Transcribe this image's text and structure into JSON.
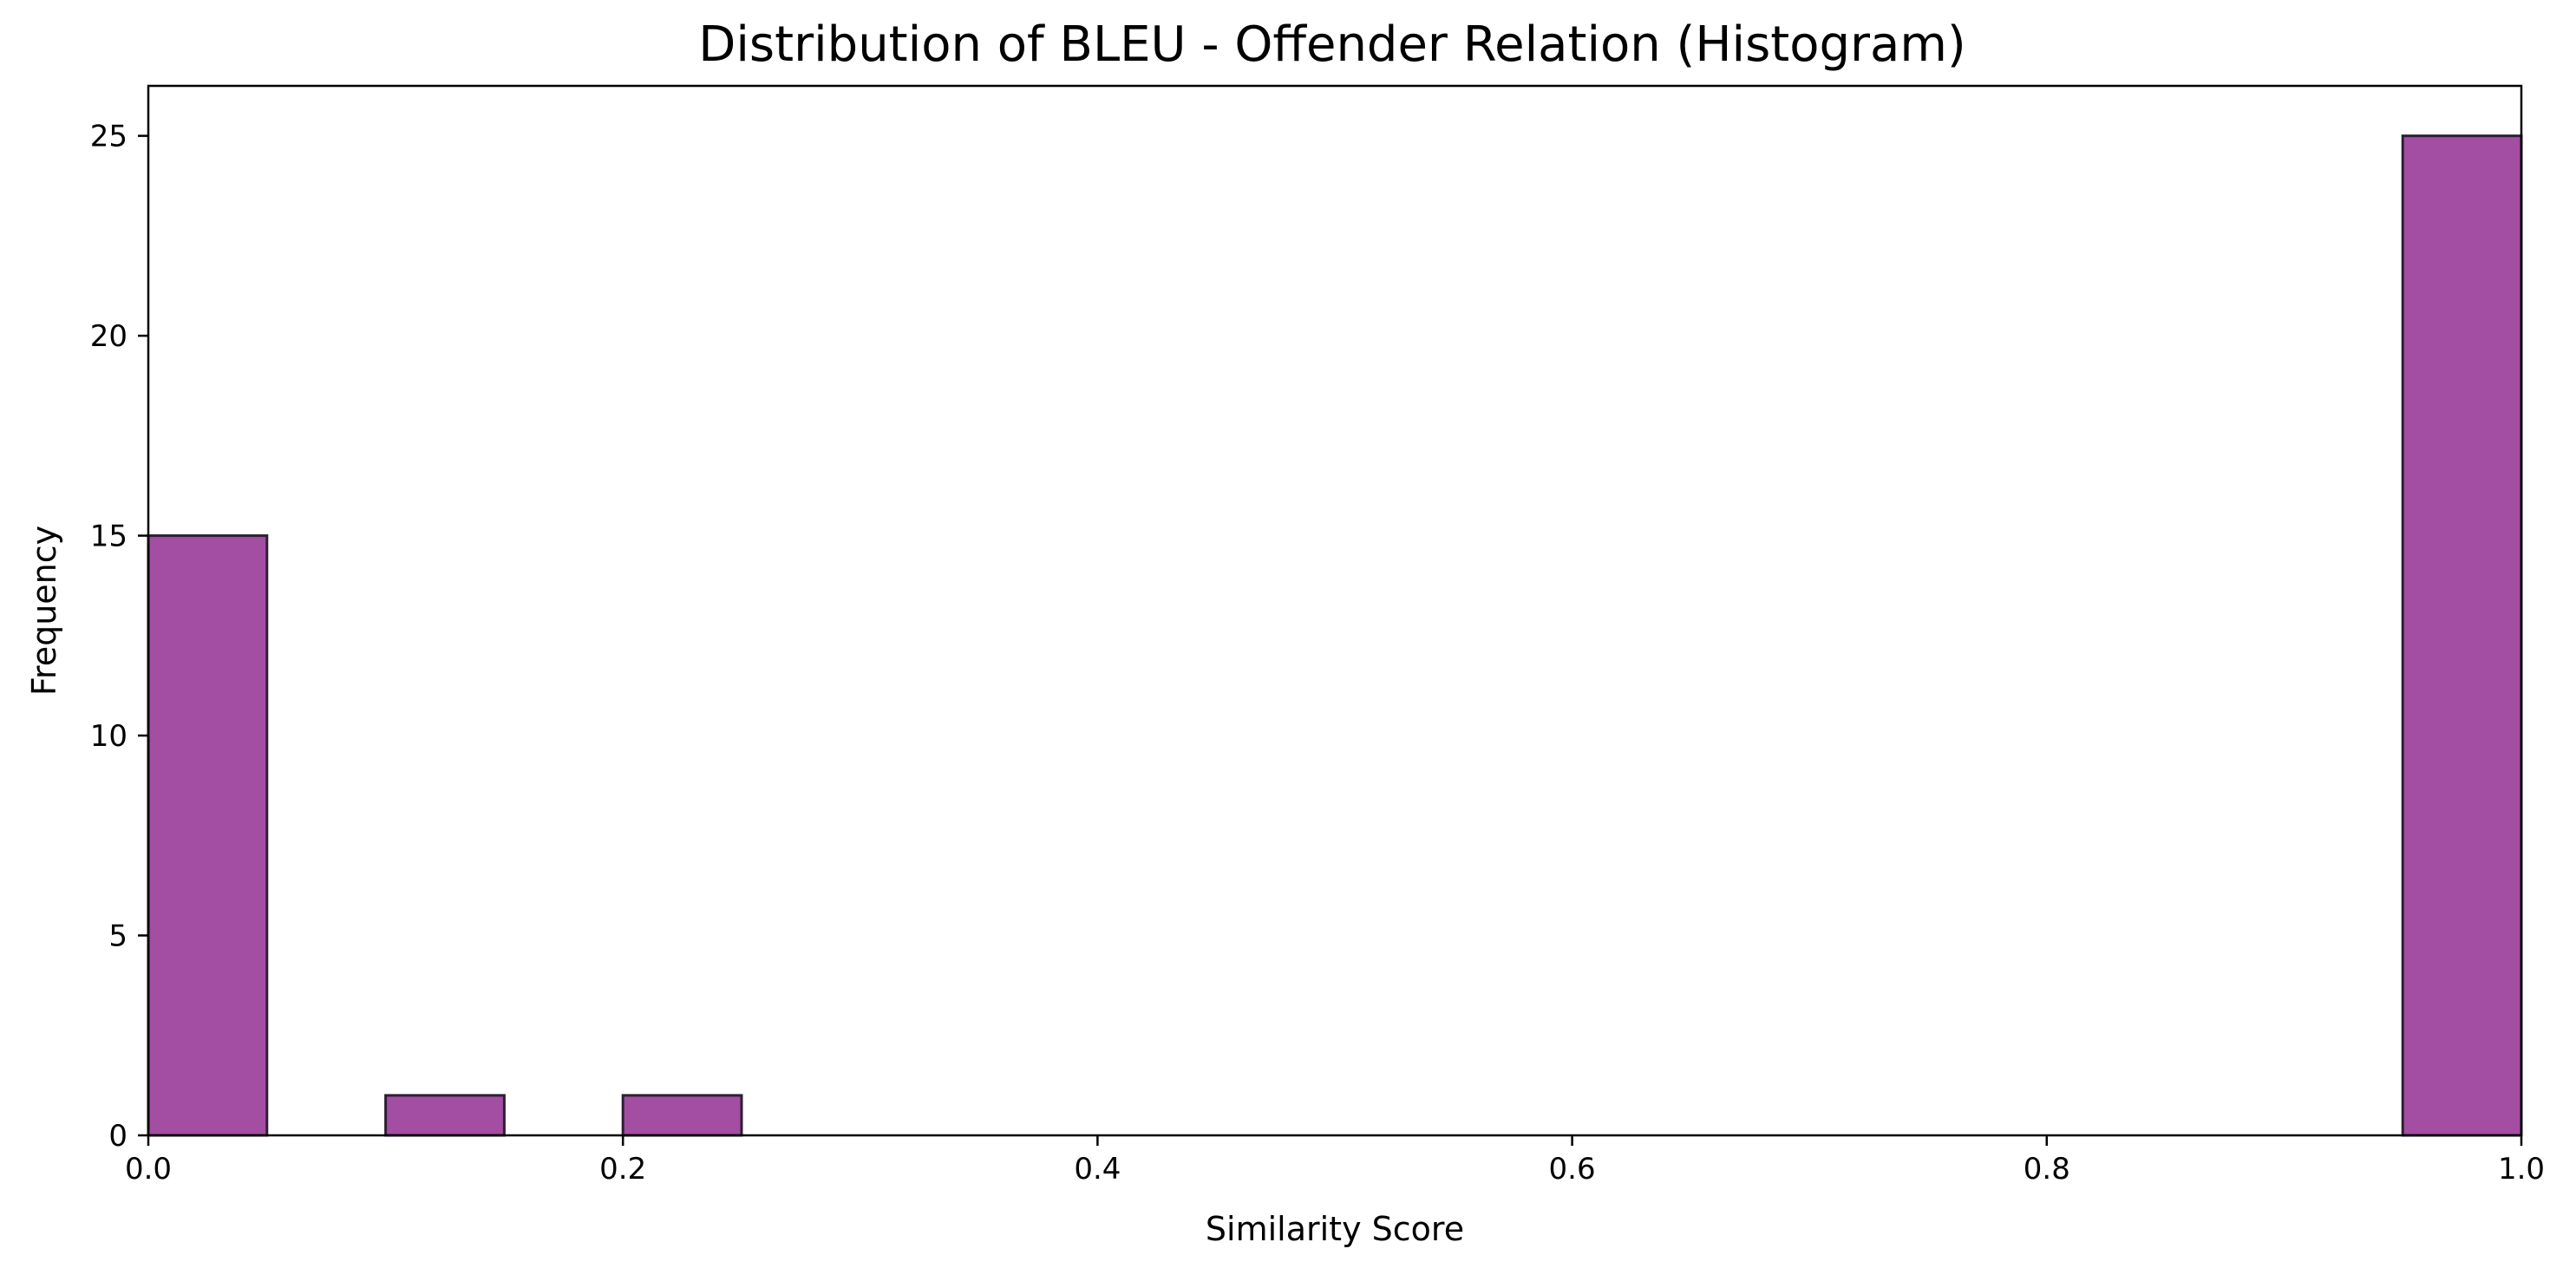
{
  "chart_data": {
    "type": "bar",
    "title": "Distribution of BLEU - Offender Relation (Histogram)",
    "xlabel": "Similarity Score",
    "ylabel": "Frequency",
    "xlim": [
      0.0,
      1.0
    ],
    "ylim": [
      0,
      26.25
    ],
    "xticks": [
      0.0,
      0.2,
      0.4,
      0.6,
      0.8,
      1.0
    ],
    "xtick_labels": [
      "0.0",
      "0.2",
      "0.4",
      "0.6",
      "0.8",
      "1.0"
    ],
    "yticks": [
      0,
      5,
      10,
      15,
      20,
      25
    ],
    "ytick_labels": [
      "0",
      "5",
      "10",
      "15",
      "20",
      "25"
    ],
    "bins": [
      {
        "x0": 0.0,
        "x1": 0.05,
        "count": 15
      },
      {
        "x0": 0.05,
        "x1": 0.1,
        "count": 0
      },
      {
        "x0": 0.1,
        "x1": 0.15,
        "count": 1
      },
      {
        "x0": 0.15,
        "x1": 0.2,
        "count": 0
      },
      {
        "x0": 0.2,
        "x1": 0.25,
        "count": 1
      },
      {
        "x0": 0.25,
        "x1": 0.3,
        "count": 0
      },
      {
        "x0": 0.3,
        "x1": 0.35,
        "count": 0
      },
      {
        "x0": 0.35,
        "x1": 0.4,
        "count": 0
      },
      {
        "x0": 0.4,
        "x1": 0.45,
        "count": 0
      },
      {
        "x0": 0.45,
        "x1": 0.5,
        "count": 0
      },
      {
        "x0": 0.5,
        "x1": 0.55,
        "count": 0
      },
      {
        "x0": 0.55,
        "x1": 0.6,
        "count": 0
      },
      {
        "x0": 0.6,
        "x1": 0.65,
        "count": 0
      },
      {
        "x0": 0.65,
        "x1": 0.7,
        "count": 0
      },
      {
        "x0": 0.7,
        "x1": 0.75,
        "count": 0
      },
      {
        "x0": 0.75,
        "x1": 0.8,
        "count": 0
      },
      {
        "x0": 0.8,
        "x1": 0.85,
        "count": 0
      },
      {
        "x0": 0.85,
        "x1": 0.9,
        "count": 0
      },
      {
        "x0": 0.9,
        "x1": 0.95,
        "count": 0
      },
      {
        "x0": 0.95,
        "x1": 1.0,
        "count": 25
      }
    ],
    "bar_color": "#a34da3",
    "bar_edge_color": "#2e1f33",
    "grid": false,
    "legend": "none"
  }
}
